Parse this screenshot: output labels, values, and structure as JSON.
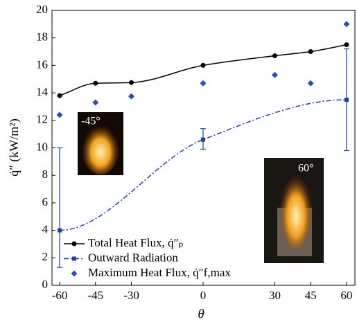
{
  "chart_data": {
    "type": "line",
    "xlabel": "θ",
    "ylabel": "q̇″ (kW/m²)",
    "xlim": [
      -63.2,
      63.5
    ],
    "ylim": [
      0,
      20
    ],
    "xticks": [
      -60,
      -45,
      -30,
      0,
      30,
      45,
      60
    ],
    "yticks": [
      0,
      2,
      4,
      6,
      8,
      10,
      12,
      14,
      16,
      18,
      20
    ],
    "series": [
      {
        "name": "Total Heat Flux, q̇″ₚ",
        "color": "#000000",
        "style": "solid-dot",
        "x": [
          -60,
          -45,
          -30,
          0,
          30,
          45,
          60
        ],
        "values": [
          13.8,
          14.7,
          14.75,
          16.0,
          16.7,
          17.0,
          17.5
        ]
      },
      {
        "name": "Outward Radiation",
        "color": "#1f3f9f",
        "style": "dashdot-square",
        "x": [
          -60,
          0,
          60
        ],
        "values": [
          4.0,
          10.6,
          13.5
        ],
        "error_low": [
          2.7,
          0.7,
          3.7
        ],
        "error_high": [
          6.0,
          0.8,
          3.7
        ]
      },
      {
        "name": "Maximum Heat Flux, q̇″f,max",
        "color": "#2f4fa8",
        "style": "diamond",
        "x": [
          -60,
          -45,
          -30,
          0,
          30,
          45,
          60
        ],
        "values": [
          12.4,
          13.3,
          13.75,
          14.7,
          15.3,
          14.7,
          19.0
        ]
      }
    ],
    "insets": [
      "-45°",
      "60°"
    ]
  }
}
